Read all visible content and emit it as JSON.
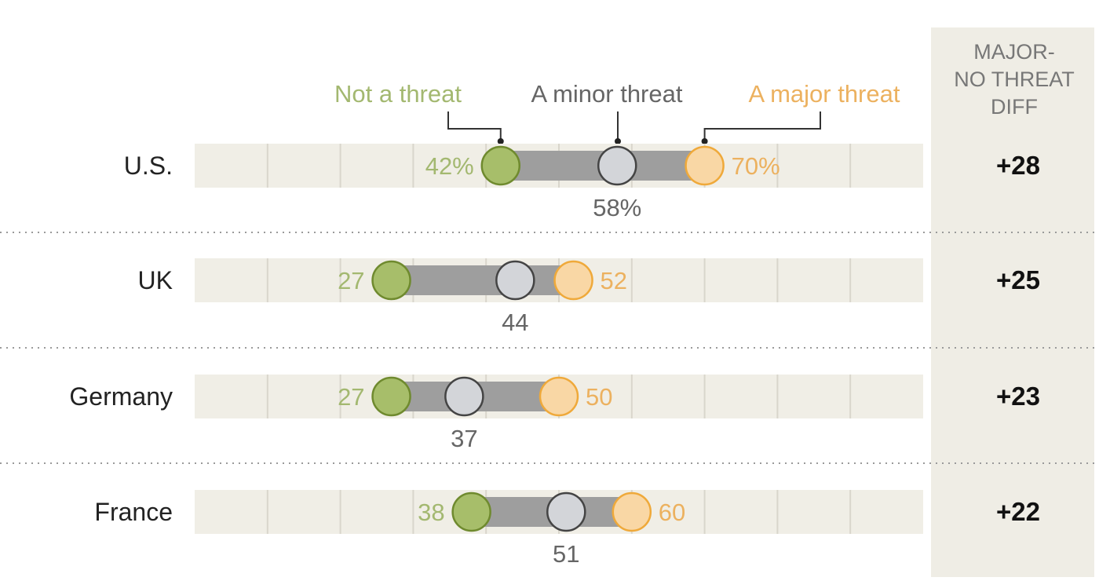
{
  "colors": {
    "not_threat": "#A7BE6A",
    "not_threat_text": "#A3B870",
    "minor_threat": "#D3D5D9",
    "minor_text": "#666666",
    "major_threat": "#F9D7A5",
    "major_stroke": "#EFA93A",
    "major_text": "#ECB15F",
    "bar_connector": "#9E9E9E",
    "track": "#F0EEE6",
    "diff_panel": "#EFEDE5"
  },
  "chart_data": {
    "type": "dot-range",
    "xlim": [
      0,
      100
    ],
    "gridline_step": 10,
    "legend": {
      "not_threat": "Not a threat",
      "minor_threat": "A minor threat",
      "major_threat": "A major threat"
    },
    "diff_header": [
      "MAJOR-",
      "NO THREAT",
      "DIFF"
    ],
    "rows": [
      {
        "country": "U.S.",
        "not_threat": 42,
        "minor_threat": 58,
        "major_threat": 70,
        "not_label": "42%",
        "minor_label": "58%",
        "major_label": "70%",
        "diff": "+28"
      },
      {
        "country": "UK",
        "not_threat": 27,
        "minor_threat": 44,
        "major_threat": 52,
        "not_label": "27",
        "minor_label": "44",
        "major_label": "52",
        "diff": "+25"
      },
      {
        "country": "Germany",
        "not_threat": 27,
        "minor_threat": 37,
        "major_threat": 50,
        "not_label": "27",
        "minor_label": "37",
        "major_label": "50",
        "diff": "+23"
      },
      {
        "country": "France",
        "not_threat": 38,
        "minor_threat": 51,
        "major_threat": 60,
        "not_label": "38",
        "minor_label": "51",
        "major_label": "60",
        "diff": "+22"
      }
    ]
  }
}
